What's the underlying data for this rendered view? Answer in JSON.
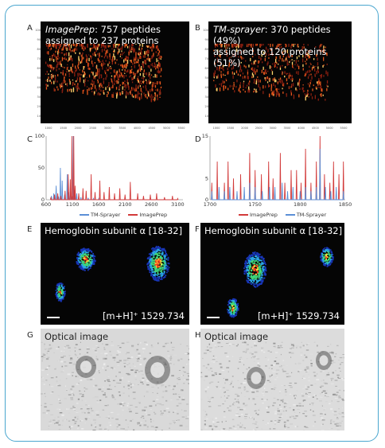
{
  "panels": {
    "A": {
      "letter": "A",
      "title_italic": "ImagePrep",
      "title_rest": ": 757 peptides",
      "line2": "assigned to 237 proteins",
      "ytick_labels": [
        "100",
        "90",
        "80",
        "70",
        "60",
        "50",
        "40",
        "30",
        "20",
        "10"
      ],
      "xtick_labels": [
        "1000",
        "1500",
        "2000",
        "2500",
        "3000",
        "3500",
        "4000",
        "4500",
        "5000",
        "5500"
      ]
    },
    "B": {
      "letter": "B",
      "title_italic": "TM-sprayer",
      "title_rest": ": 370 peptides (49%)",
      "line2": "assigned to 120 proteins (51%)",
      "ytick_labels": [
        "100",
        "90",
        "80",
        "70",
        "60",
        "50",
        "40",
        "30",
        "20",
        "10"
      ],
      "xtick_labels": [
        "1000",
        "1500",
        "2000",
        "2500",
        "3000",
        "3500",
        "4000",
        "4500",
        "5000",
        "5500"
      ]
    },
    "C": {
      "letter": "C",
      "legend": [
        "TM-Sprayer",
        "ImagePrep"
      ]
    },
    "D": {
      "letter": "D",
      "legend": [
        "ImagePrep",
        "TM-Sprayer"
      ]
    },
    "E": {
      "letter": "E",
      "title": "Hemoglobin subunit α [18-32]",
      "mz": "[m+H]⁺ 1529.734"
    },
    "F": {
      "letter": "F",
      "title": "Hemoglobin subunit α [18-32]",
      "mz": "[m+H]⁺ 1529.734"
    },
    "G": {
      "letter": "G",
      "title": "Optical image"
    },
    "H": {
      "letter": "H",
      "title": "Optical image"
    }
  },
  "colors": {
    "border": "#4aa6cf",
    "tm_sprayer": "#5b8fd6",
    "imageprep": "#d23a3a"
  },
  "chart_data": [
    {
      "type": "line",
      "panel": "C",
      "xlim": [
        600,
        3200
      ],
      "ylim": [
        0,
        100
      ],
      "xticks": [
        600,
        1100,
        1600,
        2100,
        2600,
        3100
      ],
      "yticks": [
        0,
        50,
        100
      ],
      "series": [
        {
          "name": "TM-Sprayer",
          "color": "#5b8fd6",
          "x": [
            700,
            745,
            790,
            836,
            870,
            905,
            950,
            1000,
            1030,
            1060,
            1090,
            1116,
            1140,
            1180,
            1260,
            1300,
            1400,
            1500,
            1600,
            1800,
            2000,
            2200,
            2400,
            2600,
            2800,
            3000
          ],
          "y": [
            6,
            10,
            22,
            5,
            50,
            30,
            8,
            40,
            12,
            20,
            5,
            100,
            15,
            10,
            4,
            6,
            3,
            2,
            2,
            1,
            1,
            1,
            0,
            0,
            0,
            0
          ]
        },
        {
          "name": "ImagePrep",
          "color": "#d23a3a",
          "x": [
            690,
            760,
            820,
            880,
            960,
            1020,
            1060,
            1090,
            1110,
            1125,
            1150,
            1220,
            1300,
            1360,
            1455,
            1530,
            1620,
            1700,
            1800,
            1900,
            2000,
            2100,
            2200,
            2340,
            2450,
            2580,
            2700,
            2850,
            3000,
            3100
          ],
          "y": [
            4,
            8,
            10,
            6,
            14,
            40,
            32,
            100,
            6,
            100,
            22,
            10,
            18,
            14,
            40,
            12,
            30,
            12,
            20,
            10,
            18,
            8,
            28,
            10,
            6,
            8,
            10,
            4,
            6,
            2
          ]
        }
      ]
    },
    {
      "type": "line",
      "panel": "D",
      "xlim": [
        1700,
        1850
      ],
      "ylim": [
        0,
        15
      ],
      "xticks": [
        1700,
        1750,
        1800,
        1850
      ],
      "yticks": [
        0,
        5,
        15
      ],
      "series": [
        {
          "name": "ImagePrep",
          "color": "#d23a3a",
          "x": [
            1702,
            1708,
            1716,
            1720,
            1726,
            1734,
            1744,
            1750,
            1757,
            1765,
            1770,
            1778,
            1783,
            1790,
            1796,
            1801,
            1806,
            1812,
            1818,
            1822,
            1827,
            1833,
            1837,
            1843,
            1848
          ],
          "y": [
            4,
            9,
            4,
            9,
            5,
            6,
            11,
            7,
            6,
            9,
            5,
            11,
            4,
            7,
            7,
            4,
            12,
            4,
            9,
            15,
            6,
            4,
            9,
            6,
            9
          ]
        },
        {
          "name": "TM-Sprayer",
          "color": "#5b8fd6",
          "x": [
            1702,
            1710,
            1716,
            1722,
            1730,
            1738,
            1744,
            1750,
            1758,
            1766,
            1772,
            1780,
            1786,
            1792,
            1800,
            1806,
            1812,
            1818,
            1822,
            1828,
            1834,
            1840,
            1848
          ],
          "y": [
            2,
            3,
            2,
            3,
            2,
            3,
            4,
            3,
            2,
            3,
            3,
            4,
            2,
            3,
            2,
            3,
            2,
            3,
            12,
            3,
            2,
            3,
            2
          ]
        }
      ]
    }
  ]
}
